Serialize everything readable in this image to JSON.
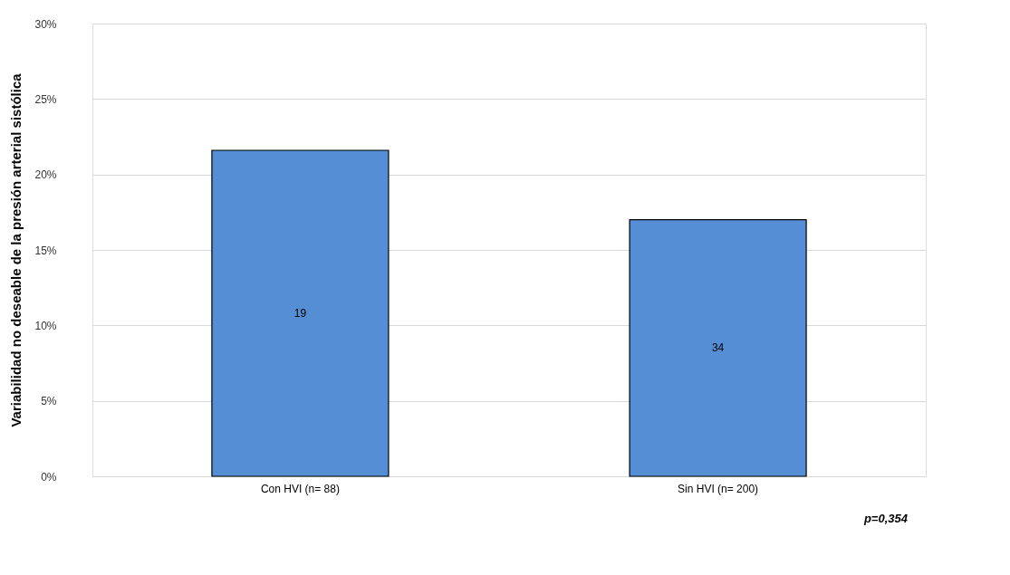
{
  "chart_data": {
    "type": "bar",
    "ylabel": "Variabilidad  no deseable de la presión arterial sistólica",
    "categories": [
      "Con HVI (n= 88)",
      "Sin HVI (n= 200)"
    ],
    "series": [
      {
        "color": "#558ed5",
        "values": [
          21.6,
          17.0
        ]
      }
    ],
    "ylim": [
      0,
      30
    ],
    "yticks": [
      {
        "value": 0,
        "label": "0%"
      },
      {
        "value": 5,
        "label": "5%"
      },
      {
        "value": 10,
        "label": "10%"
      },
      {
        "value": 15,
        "label": "15%"
      },
      {
        "value": 20,
        "label": "20%"
      },
      {
        "value": 25,
        "label": "25%"
      },
      {
        "value": 30,
        "label": "30%"
      }
    ],
    "grid": "y",
    "annotations": [
      "19",
      "34",
      "p=0,354"
    ]
  }
}
